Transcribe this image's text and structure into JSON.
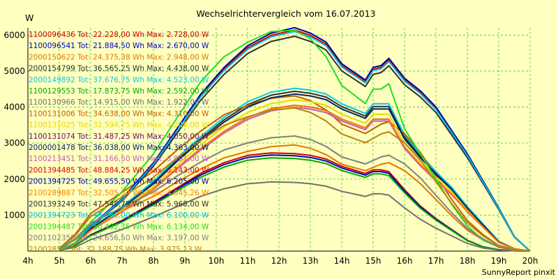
{
  "chart_data": {
    "type": "line",
    "title": "Wechselrichtervergleich vom 16.07.2013",
    "ylabel": "W",
    "xlabel": "",
    "credit": "SunnyReport pinxit",
    "ylim": [
      0,
      6200
    ],
    "xlim": [
      4,
      20
    ],
    "y_ticks": [
      1000,
      2000,
      3000,
      4000,
      5000,
      6000
    ],
    "x_ticks": [
      "4h",
      "5h",
      "6h",
      "7h",
      "8h",
      "9h",
      "10h",
      "11h",
      "12h",
      "13h",
      "14h",
      "15h",
      "16h",
      "17h",
      "18h",
      "19h",
      "20h"
    ],
    "grid": true,
    "legend_position": "top-left inside",
    "hours": [
      4.5,
      5,
      5.5,
      6,
      6.5,
      7,
      7.5,
      8,
      8.5,
      9,
      9.5,
      10,
      10.5,
      11,
      11.25,
      11.5,
      12,
      12.5,
      13,
      13.5,
      14,
      14.25,
      14.5,
      14.75,
      15,
      15.25,
      15.5,
      15.75,
      16,
      16.5,
      17,
      17.5,
      18,
      18.5,
      19,
      19.5,
      20
    ],
    "series": [
      {
        "name": "1100096436 Tot: 22.228,00 Wh Max: 2.728,00 W",
        "color": "#cc0000",
        "shape": "s",
        "peak": 2728
      },
      {
        "name": "1100096541 Tot: 21.884,50 Wh Max: 2.670,00 W",
        "color": "#0000cc",
        "shape": "s",
        "peak": 2670
      },
      {
        "name": "2000150622 Tot: 24.375,38 Wh Max: 2.948,00 W",
        "color": "#e07800",
        "shape": "w",
        "peak": 2948
      },
      {
        "name": "2000154799 Tot: 36.565,25 Wh Max: 4.438,00 W",
        "color": "#303030",
        "shape": "m",
        "peak": 4438
      },
      {
        "name": "2000149892 Tot: 37.676,75 Wh Max: 4.523,00 W",
        "color": "#00ccee",
        "shape": "m",
        "peak": 4523
      },
      {
        "name": "1100129553 Tot: 17.873,75 Wh Max: 2.592,00 W",
        "color": "#00aa00",
        "shape": "s",
        "peak": 2592
      },
      {
        "name": "1100130966 Tot: 14.915,00 Wh Max: 1.922,00 W",
        "color": "#707070",
        "shape": "s",
        "peak": 1922
      },
      {
        "name": "1100131006 Tot: 34.638,00 Wh Max: 4.310,00 W",
        "color": "#c06000",
        "shape": "w",
        "peak": 4310
      },
      {
        "name": "1100131025 Tot: 32.594,75 Wh Max: 4.200,00 W",
        "color": "#e8d800",
        "shape": "m",
        "peak": 4200
      },
      {
        "name": "1100131074 Tot: 31.487,25 Wh Max: 4.050,00 W",
        "color": "#6a0a6a",
        "shape": "m",
        "peak": 4050
      },
      {
        "name": "2000001478 Tot: 36.038,00 Wh Max: 4.363,00 W",
        "color": "#002266",
        "shape": "m",
        "peak": 4363
      },
      {
        "name": "1100213451 Tot: 31.166,50 Wh Max: 3.991,00 W",
        "color": "#c060c0",
        "shape": "m",
        "peak": 3991
      },
      {
        "name": "2001394485 Tot: 48.884,25 Wh Max: 6.143,00 W",
        "color": "#dd0000",
        "shape": "l",
        "peak": 6143
      },
      {
        "name": "2001394725 Tot: 49.655,50 Wh Max: 6.205,00 W",
        "color": "#0000aa",
        "shape": "l",
        "peak": 6205
      },
      {
        "name": "2100289887 Tot: 32.505,34 Wh Max: 4.045,26 W",
        "color": "#ff8000",
        "shape": "m",
        "peak": 4045
      },
      {
        "name": "2001393249 Tot: 47.548,75 Wh Max: 5.968,00 W",
        "color": "#303030",
        "shape": "l",
        "peak": 5968
      },
      {
        "name": "2001394723 Tot: 48.480,00 Wh Max: 6.100,00 W",
        "color": "#00bbdd",
        "shape": "l",
        "peak": 6100
      },
      {
        "name": "2001394487 Tot: 50.402,75 Wh Max: 6.134,00 W",
        "color": "#22dd22",
        "shape": "g",
        "peak": 6134
      },
      {
        "name": "2001102358 Tot: 24.656,50 Wh Max: 3.197,00 W",
        "color": "#808080",
        "shape": "w",
        "peak": 3197
      },
      {
        "name": "2100285... Tot: 32.188,75 Wh Max: 3.975,13 W",
        "color": "#b8860b",
        "shape": "w",
        "peak": 3975
      }
    ],
    "shapes": {
      "l": [
        40,
        220,
        700,
        1450,
        2450,
        3400,
        4350,
        5100,
        5700,
        6050,
        6200,
        6050,
        5800,
        5200,
        4750,
        5100,
        5150,
        5350,
        4800,
        4450,
        4000,
        3350,
        2700,
        1950,
        1200,
        400,
        0
      ],
      "g": [
        40,
        220,
        800,
        1650,
        2700,
        3700,
        4700,
        5400,
        5800,
        6100,
        6134,
        5900,
        5400,
        4600,
        4100,
        4500,
        4500,
        4650,
        3400,
        2700,
        2000,
        1300,
        700,
        300,
        120,
        30,
        0
      ],
      "m": [
        40,
        200,
        600,
        1150,
        1800,
        2400,
        2950,
        3450,
        3850,
        4100,
        4200,
        4150,
        4050,
        3800,
        3550,
        3800,
        3800,
        3800,
        3000,
        2500,
        2050,
        1650,
        1150,
        700,
        250,
        60,
        0
      ],
      "s": [
        30,
        150,
        450,
        850,
        1350,
        1750,
        2150,
        2450,
        2650,
        2720,
        2700,
        2650,
        2550,
        2350,
        2150,
        2250,
        2250,
        2200,
        1700,
        1250,
        900,
        600,
        300,
        120,
        40,
        10,
        0
      ],
      "w": [
        60,
        350,
        800,
        1250,
        1700,
        2150,
        2550,
        2900,
        3100,
        3250,
        3300,
        3200,
        3000,
        2700,
        2500,
        2600,
        2700,
        2750,
        2500,
        2100,
        1600,
        1100,
        650,
        350,
        120,
        30,
        0
      ]
    },
    "shape_hours": [
      5,
      5.5,
      6,
      7,
      8,
      8.75,
      9.5,
      10.25,
      11,
      11.75,
      12.5,
      13,
      13.5,
      14,
      14.75,
      15,
      15.25,
      15.5,
      16,
      16.5,
      17,
      17.5,
      18,
      18.5,
      19,
      19.5,
      20
    ]
  }
}
